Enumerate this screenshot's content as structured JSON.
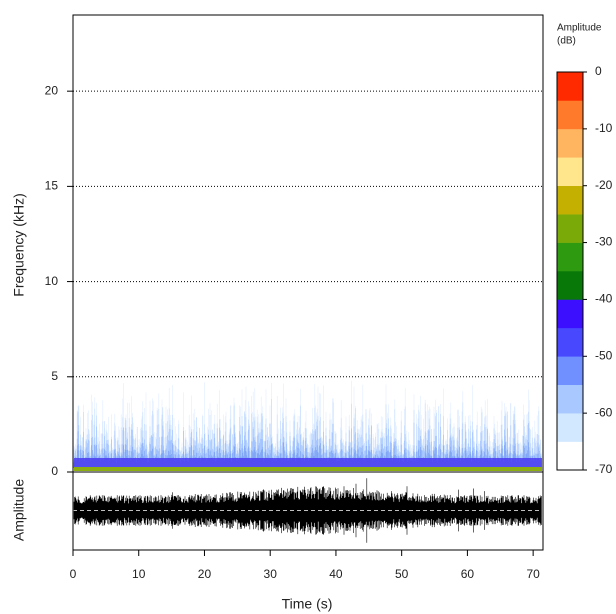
{
  "chart_data": {
    "type": "spectrogram",
    "x_label": "Time (s)",
    "y_label": "Frequency (kHz)",
    "oscillogram_label": "Amplitude",
    "xlim": [
      0,
      71.5
    ],
    "xticks": [
      0,
      10,
      20,
      30,
      40,
      50,
      60,
      70
    ],
    "ylim": [
      0,
      24
    ],
    "yticks": [
      0,
      5,
      10,
      15,
      20
    ],
    "grid": true,
    "colorbar": {
      "title": [
        "Amplitude",
        "(dB)"
      ],
      "lim": [
        -70,
        0
      ],
      "ticks": [
        0,
        -10,
        -20,
        -30,
        -40,
        -50,
        -60,
        -70
      ],
      "colors": [
        "#ffffff",
        "#d2e8ff",
        "#a8c8ff",
        "#7090ff",
        "#4848ff",
        "#3c10ff",
        "#087808",
        "#2e9a10",
        "#7aaa08",
        "#c4b000",
        "#ffe68c",
        "#ffb460",
        "#ff7a2a",
        "#ff2a00"
      ]
    }
  }
}
